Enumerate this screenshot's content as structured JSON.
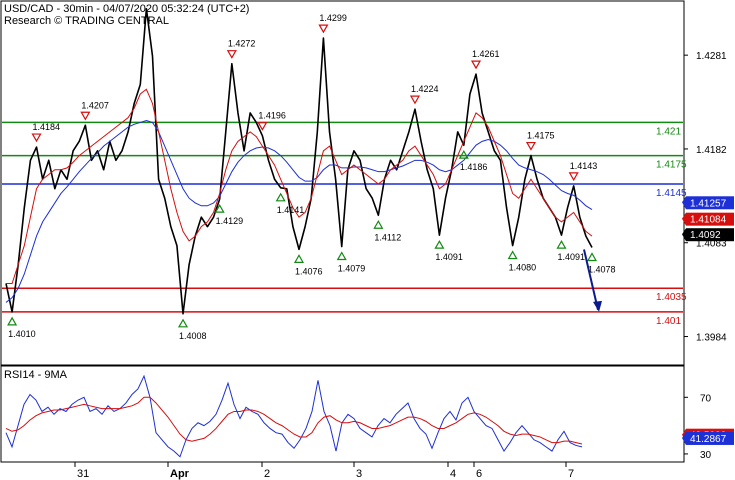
{
  "chart_data": {
    "type": "line",
    "title": "USD/CAD - 30min - 04/07/2020 05:32:24 (UTC+2)",
    "subtitle": "Research © TRADING CENTRAL",
    "x_ticks": [
      "31",
      "Apr",
      "2",
      "3",
      "4",
      "6",
      "7"
    ],
    "y_ticks": [
      "1.4281",
      "1.4182",
      "1.4083",
      "1.3984"
    ],
    "ylim": [
      1.3955,
      1.4335
    ],
    "price_series": [
      1.404,
      1.401,
      1.406,
      1.412,
      1.417,
      1.4184,
      1.415,
      1.417,
      1.414,
      1.416,
      1.415,
      1.418,
      1.419,
      1.4207,
      1.417,
      1.418,
      1.416,
      1.419,
      1.417,
      1.418,
      1.42,
      1.423,
      1.425,
      1.433,
      1.428,
      1.415,
      1.413,
      1.41,
      1.408,
      1.4008,
      1.406,
      1.409,
      1.411,
      1.41,
      1.411,
      1.4129,
      1.42,
      1.4272,
      1.422,
      1.418,
      1.422,
      1.421,
      1.4196,
      1.417,
      1.415,
      1.4141,
      1.414,
      1.41,
      1.4076,
      1.41,
      1.413,
      1.42,
      1.4299,
      1.42,
      1.415,
      1.4079,
      1.416,
      1.418,
      1.417,
      1.414,
      1.413,
      1.4112,
      1.415,
      1.417,
      1.416,
      1.418,
      1.42,
      1.4224,
      1.419,
      1.416,
      1.414,
      1.4091,
      1.413,
      1.416,
      1.42,
      1.4186,
      1.424,
      1.4261,
      1.422,
      1.42,
      1.418,
      1.417,
      1.412,
      1.408,
      1.411,
      1.415,
      1.4175,
      1.415,
      1.413,
      1.412,
      1.411,
      1.4091,
      1.412,
      1.4143,
      1.411,
      1.409,
      1.4078
    ],
    "ma_red": [
      1.404,
      1.404,
      1.406,
      1.408,
      1.411,
      1.414,
      1.415,
      1.4155,
      1.416,
      1.416,
      1.4162,
      1.4168,
      1.4175,
      1.418,
      1.4185,
      1.419,
      1.4195,
      1.42,
      1.4205,
      1.421,
      1.4215,
      1.4225,
      1.424,
      1.4245,
      1.423,
      1.42,
      1.417,
      1.414,
      1.4115,
      1.4095,
      1.4085,
      1.409,
      1.41,
      1.4105,
      1.4115,
      1.4135,
      1.416,
      1.418,
      1.419,
      1.4195,
      1.42,
      1.4195,
      1.4185,
      1.4175,
      1.4165,
      1.415,
      1.4135,
      1.412,
      1.411,
      1.4115,
      1.413,
      1.4155,
      1.418,
      1.4185,
      1.417,
      1.4155,
      1.416,
      1.4165,
      1.416,
      1.4155,
      1.415,
      1.4145,
      1.415,
      1.416,
      1.4165,
      1.417,
      1.418,
      1.4185,
      1.4175,
      1.4165,
      1.4155,
      1.414,
      1.4145,
      1.416,
      1.4175,
      1.419,
      1.4205,
      1.422,
      1.4215,
      1.4205,
      1.419,
      1.4175,
      1.4155,
      1.4135,
      1.413,
      1.414,
      1.415,
      1.414,
      1.413,
      1.412,
      1.411,
      1.4105,
      1.411,
      1.4115,
      1.4105,
      1.4095,
      1.409
    ],
    "ma_blue": [
      1.402,
      1.4025,
      1.4035,
      1.405,
      1.407,
      1.409,
      1.4105,
      1.4115,
      1.4125,
      1.4135,
      1.4142,
      1.415,
      1.4158,
      1.4165,
      1.4172,
      1.4178,
      1.4185,
      1.419,
      1.4195,
      1.42,
      1.4205,
      1.4208,
      1.421,
      1.4212,
      1.421,
      1.42,
      1.4185,
      1.417,
      1.4155,
      1.414,
      1.413,
      1.4125,
      1.4122,
      1.4122,
      1.4125,
      1.4132,
      1.4145,
      1.4158,
      1.4168,
      1.4175,
      1.418,
      1.4183,
      1.4184,
      1.4183,
      1.418,
      1.4175,
      1.4168,
      1.416,
      1.4152,
      1.4148,
      1.4148,
      1.4152,
      1.416,
      1.4165,
      1.4165,
      1.4162,
      1.4162,
      1.4163,
      1.4163,
      1.4162,
      1.416,
      1.4158,
      1.4158,
      1.416,
      1.4162,
      1.4164,
      1.4167,
      1.417,
      1.417,
      1.4168,
      1.4165,
      1.416,
      1.4158,
      1.416,
      1.4165,
      1.417,
      1.4178,
      1.4186,
      1.419,
      1.4192,
      1.419,
      1.4186,
      1.418,
      1.4172,
      1.4165,
      1.4162,
      1.416,
      1.4158,
      1.4155,
      1.415,
      1.4144,
      1.4138,
      1.4135,
      1.4133,
      1.4128,
      1.4122,
      1.4118
    ],
    "projection": {
      "from_index": 96,
      "from_value": 1.4078,
      "to_value": 1.401
    },
    "horizontal_lines": [
      {
        "value": 1.421,
        "label": "1.421",
        "color": "#138a13"
      },
      {
        "value": 1.4175,
        "label": "1.4175",
        "color": "#138a13"
      },
      {
        "value": 1.4145,
        "label": "1.4145",
        "color": "#1d2fd6"
      },
      {
        "value": 1.4035,
        "label": "1.4035",
        "color": "#d60e0e"
      },
      {
        "value": 1.401,
        "label": "1.401",
        "color": "#d60e0e"
      }
    ],
    "price_tags": [
      {
        "value": 1.41257,
        "label": "1.41257",
        "color": "#1d2fd6"
      },
      {
        "value": 1.41084,
        "label": "1.41084",
        "color": "#d60e0e"
      },
      {
        "value": 1.4092,
        "label": "1.4092",
        "color": "#000000"
      }
    ],
    "annotations": [
      {
        "index": 1,
        "value": 1.401,
        "label": "1.4010",
        "kind": "low"
      },
      {
        "index": 5,
        "value": 1.4184,
        "label": "1.4184",
        "kind": "high"
      },
      {
        "index": 13,
        "value": 1.4207,
        "label": "1.4207",
        "kind": "high"
      },
      {
        "index": 29,
        "value": 1.4008,
        "label": "1.4008",
        "kind": "low"
      },
      {
        "index": 35,
        "value": 1.4129,
        "label": "1.4129",
        "kind": "low"
      },
      {
        "index": 37,
        "value": 1.4272,
        "label": "1.4272",
        "kind": "high"
      },
      {
        "index": 42,
        "value": 1.4196,
        "label": "1.4196",
        "kind": "high"
      },
      {
        "index": 45,
        "value": 1.4141,
        "label": "1.4141",
        "kind": "low"
      },
      {
        "index": 48,
        "value": 1.4076,
        "label": "1.4076",
        "kind": "low"
      },
      {
        "index": 52,
        "value": 1.4299,
        "label": "1.4299",
        "kind": "high"
      },
      {
        "index": 55,
        "value": 1.4079,
        "label": "1.4079",
        "kind": "low"
      },
      {
        "index": 61,
        "value": 1.4112,
        "label": "1.4112",
        "kind": "low"
      },
      {
        "index": 67,
        "value": 1.4224,
        "label": "1.4224",
        "kind": "high"
      },
      {
        "index": 71,
        "value": 1.4091,
        "label": "1.4091",
        "kind": "low"
      },
      {
        "index": 75,
        "value": 1.4186,
        "label": "1.4186",
        "kind": "low"
      },
      {
        "index": 77,
        "value": 1.4261,
        "label": "1.4261",
        "kind": "high"
      },
      {
        "index": 83,
        "value": 1.408,
        "label": "1.4080",
        "kind": "low"
      },
      {
        "index": 86,
        "value": 1.4175,
        "label": "1.4175",
        "kind": "high"
      },
      {
        "index": 91,
        "value": 1.4091,
        "label": "1.4091",
        "kind": "low"
      },
      {
        "index": 93,
        "value": 1.4143,
        "label": "1.4143",
        "kind": "high"
      },
      {
        "index": 96,
        "value": 1.4078,
        "label": "1.4078",
        "kind": "low"
      }
    ],
    "rsi": {
      "title": "RSI14 - 9MA",
      "ylim": [
        25,
        90
      ],
      "y_ticks": [
        "70",
        "30"
      ],
      "rsi_series": [
        45,
        35,
        50,
        65,
        72,
        68,
        60,
        63,
        58,
        62,
        60,
        65,
        68,
        70,
        60,
        62,
        58,
        64,
        60,
        62,
        66,
        72,
        76,
        85,
        70,
        45,
        40,
        35,
        32,
        28,
        40,
        48,
        52,
        50,
        53,
        58,
        68,
        80,
        65,
        55,
        63,
        60,
        58,
        52,
        48,
        45,
        44,
        38,
        34,
        40,
        48,
        60,
        82,
        60,
        50,
        32,
        52,
        58,
        55,
        48,
        45,
        42,
        50,
        55,
        52,
        58,
        62,
        66,
        55,
        48,
        44,
        34,
        45,
        55,
        60,
        54,
        66,
        70,
        60,
        55,
        50,
        48,
        40,
        32,
        38,
        45,
        50,
        45,
        40,
        38,
        35,
        32,
        40,
        46,
        38,
        36,
        35
      ],
      "rsi_ma": [
        48,
        46,
        47,
        50,
        54,
        57,
        59,
        60,
        61,
        61,
        62,
        63,
        64,
        65,
        64,
        63,
        62,
        62,
        62,
        62,
        63,
        64,
        66,
        70,
        70,
        66,
        61,
        56,
        50,
        44,
        40,
        39,
        40,
        41,
        44,
        48,
        53,
        58,
        60,
        60,
        61,
        61,
        60,
        58,
        55,
        52,
        50,
        47,
        44,
        42,
        42,
        45,
        52,
        56,
        57,
        54,
        52,
        52,
        53,
        52,
        50,
        48,
        48,
        49,
        50,
        52,
        54,
        56,
        56,
        55,
        53,
        50,
        48,
        48,
        50,
        52,
        55,
        58,
        59,
        58,
        56,
        53,
        50,
        46,
        44,
        43,
        44,
        44,
        43,
        42,
        40,
        38,
        38,
        39,
        39,
        38,
        37
      ],
      "price_tags": [
        {
          "value": 43.5888,
          "label": "43.5888",
          "color": "#d60e0e"
        },
        {
          "value": 41.2867,
          "label": "41.2867",
          "color": "#1d2fd6"
        }
      ]
    }
  }
}
